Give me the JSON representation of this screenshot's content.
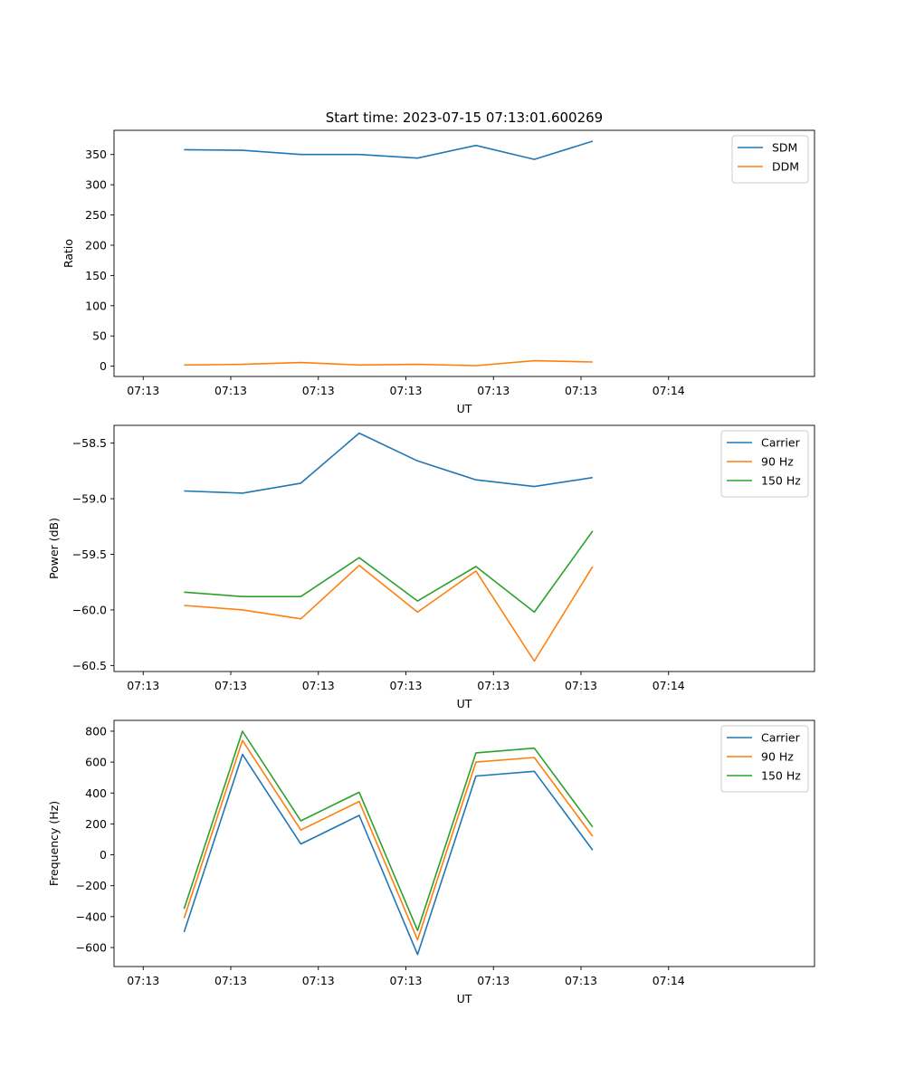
{
  "figure_title": "Start time: 2023-07-15 07:13:01.600269",
  "colors": {
    "blue": "#1f77b4",
    "orange": "#ff7f0e",
    "green": "#2ca02c"
  },
  "chart_data": [
    {
      "type": "line",
      "xlabel": "UT",
      "ylabel": "Ratio",
      "xlim": [
        0,
        12
      ],
      "x_ticks": [
        0.5,
        2,
        3.5,
        5,
        6.5,
        8,
        9.5
      ],
      "x_tick_labels": [
        "07:13",
        "07:13",
        "07:13",
        "07:13",
        "07:13",
        "07:13",
        "07:14"
      ],
      "ylim": [
        -17,
        390
      ],
      "y_ticks": [
        0,
        50,
        100,
        150,
        200,
        250,
        300,
        350
      ],
      "y_tick_labels": [
        "0",
        "50",
        "100",
        "150",
        "200",
        "250",
        "300",
        "350"
      ],
      "legend_position": "top-right",
      "x": [
        1.2,
        2.2,
        3.2,
        4.2,
        5.2,
        6.2,
        7.2,
        8.2
      ],
      "series": [
        {
          "name": "SDM",
          "color": "#1f77b4",
          "values": [
            358,
            357,
            350,
            350,
            344,
            365,
            342,
            372
          ]
        },
        {
          "name": "DDM",
          "color": "#ff7f0e",
          "values": [
            2,
            3,
            6,
            2,
            3,
            1,
            9,
            7
          ]
        }
      ]
    },
    {
      "type": "line",
      "xlabel": "UT",
      "ylabel": "Power (dB)",
      "xlim": [
        0,
        12
      ],
      "x_ticks": [
        0.5,
        2,
        3.5,
        5,
        6.5,
        8,
        9.5
      ],
      "x_tick_labels": [
        "07:13",
        "07:13",
        "07:13",
        "07:13",
        "07:13",
        "07:13",
        "07:14"
      ],
      "ylim": [
        -60.554,
        -58.34
      ],
      "y_ticks": [
        -60.5,
        -60.0,
        -59.5,
        -59.0,
        -58.5
      ],
      "y_tick_labels": [
        "−60.5",
        "−60.0",
        "−59.5",
        "−59.0",
        "−58.5"
      ],
      "legend_position": "top-right",
      "x": [
        1.2,
        2.2,
        3.2,
        4.2,
        5.2,
        6.2,
        7.2,
        8.2
      ],
      "series": [
        {
          "name": "Carrier",
          "color": "#1f77b4",
          "values": [
            -58.93,
            -58.95,
            -58.86,
            -58.41,
            -58.66,
            -58.83,
            -58.89,
            -58.81
          ]
        },
        {
          "name": "90 Hz",
          "color": "#ff7f0e",
          "values": [
            -59.96,
            -60.0,
            -60.08,
            -59.6,
            -60.02,
            -59.65,
            -60.46,
            -59.61
          ]
        },
        {
          "name": "150 Hz",
          "color": "#2ca02c",
          "values": [
            -59.84,
            -59.88,
            -59.88,
            -59.53,
            -59.92,
            -59.61,
            -60.02,
            -59.29
          ]
        }
      ]
    },
    {
      "type": "line",
      "xlabel": "UT",
      "ylabel": "Frequency (Hz)",
      "xlim": [
        0,
        12
      ],
      "x_ticks": [
        0.5,
        2,
        3.5,
        5,
        6.5,
        8,
        9.5
      ],
      "x_tick_labels": [
        "07:13",
        "07:13",
        "07:13",
        "07:13",
        "07:13",
        "07:13",
        "07:14"
      ],
      "ylim": [
        -723,
        870
      ],
      "y_ticks": [
        -600,
        -400,
        -200,
        0,
        200,
        400,
        600,
        800
      ],
      "y_tick_labels": [
        "−600",
        "−400",
        "−200",
        "0",
        "200",
        "400",
        "600",
        "800"
      ],
      "legend_position": "top-right",
      "x": [
        1.2,
        2.2,
        3.2,
        4.2,
        5.2,
        6.2,
        7.2,
        8.2
      ],
      "series": [
        {
          "name": "Carrier",
          "color": "#1f77b4",
          "values": [
            -500,
            650,
            70,
            255,
            -645,
            510,
            540,
            30
          ]
        },
        {
          "name": "90 Hz",
          "color": "#ff7f0e",
          "values": [
            -410,
            740,
            160,
            345,
            -550,
            600,
            630,
            120
          ]
        },
        {
          "name": "150 Hz",
          "color": "#2ca02c",
          "values": [
            -350,
            800,
            220,
            405,
            -490,
            660,
            690,
            180
          ]
        }
      ]
    }
  ]
}
